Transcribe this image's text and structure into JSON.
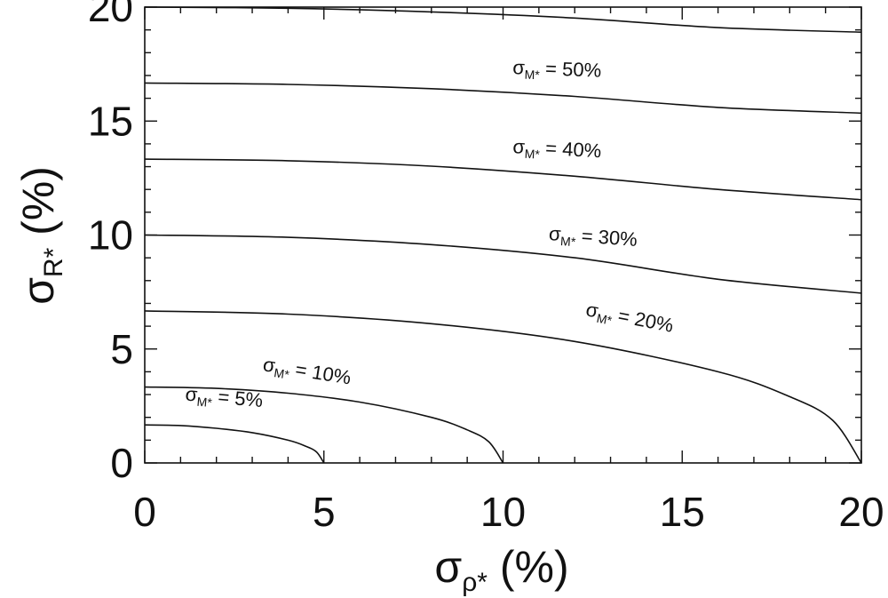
{
  "chart_data": {
    "type": "line",
    "title": "",
    "xlabel": {
      "base": "σ",
      "sub": "ρ*",
      "suffix": " (%)"
    },
    "ylabel": {
      "base": "σ",
      "sub": "R*",
      "suffix": " (%)"
    },
    "xlim": [
      0,
      20
    ],
    "ylim": [
      0,
      20
    ],
    "xticks": [
      0,
      5,
      10,
      15,
      20
    ],
    "yticks": [
      0,
      5,
      10,
      15,
      20
    ],
    "x_tick_labels": [
      "0",
      "5",
      "10",
      "15",
      "20"
    ],
    "y_tick_labels": [
      "0",
      "5",
      "10",
      "15",
      "20"
    ],
    "minor_ticks_per_major": 5,
    "grid": false,
    "series": [
      {
        "level": 5,
        "label": {
          "base": "σ",
          "sub": "M*",
          "suffix": " =  5%"
        },
        "points": [
          [
            0,
            1.67
          ],
          [
            1,
            1.64
          ],
          [
            2,
            1.52
          ],
          [
            3,
            1.33
          ],
          [
            4,
            1.0
          ],
          [
            4.5,
            0.73
          ],
          [
            4.8,
            0.47
          ],
          [
            5,
            0
          ]
        ]
      },
      {
        "level": 10,
        "label": {
          "base": "σ",
          "sub": "M*",
          "suffix": " = 10%"
        },
        "points": [
          [
            0,
            3.33
          ],
          [
            2,
            3.27
          ],
          [
            4,
            3.06
          ],
          [
            6,
            2.67
          ],
          [
            8,
            2.0
          ],
          [
            9,
            1.45
          ],
          [
            9.6,
            0.93
          ],
          [
            10,
            0
          ]
        ]
      },
      {
        "level": 20,
        "label": {
          "base": "σ",
          "sub": "M*",
          "suffix": " = 20%"
        },
        "points": [
          [
            0,
            6.67
          ],
          [
            4,
            6.53
          ],
          [
            8,
            6.11
          ],
          [
            12,
            5.33
          ],
          [
            16,
            4.0
          ],
          [
            18,
            2.91
          ],
          [
            19.2,
            1.87
          ],
          [
            20,
            0
          ]
        ]
      },
      {
        "level": 30,
        "label": {
          "base": "σ",
          "sub": "M*",
          "suffix": " = 30%"
        },
        "points": [
          [
            0,
            10.0
          ],
          [
            4,
            9.9
          ],
          [
            8,
            9.58
          ],
          [
            12,
            9.0
          ],
          [
            16,
            8.06
          ],
          [
            20,
            7.45
          ]
        ]
      },
      {
        "level": 40,
        "label": {
          "base": "σ",
          "sub": "M*",
          "suffix": " = 40%"
        },
        "points": [
          [
            0,
            13.33
          ],
          [
            4,
            13.26
          ],
          [
            8,
            13.02
          ],
          [
            12,
            12.58
          ],
          [
            16,
            12.0
          ],
          [
            20,
            11.55
          ]
        ]
      },
      {
        "level": 50,
        "label": {
          "base": "σ",
          "sub": "M*",
          "suffix": " = 50%"
        },
        "points": [
          [
            0,
            16.67
          ],
          [
            4,
            16.61
          ],
          [
            8,
            16.42
          ],
          [
            12,
            16.08
          ],
          [
            16,
            15.6
          ],
          [
            20,
            15.35
          ]
        ]
      },
      {
        "level": 60,
        "label": null,
        "points": [
          [
            0,
            20.0
          ],
          [
            4,
            19.95
          ],
          [
            8,
            19.79
          ],
          [
            12,
            19.52
          ],
          [
            16,
            19.1
          ],
          [
            20,
            18.9
          ]
        ]
      }
    ]
  }
}
